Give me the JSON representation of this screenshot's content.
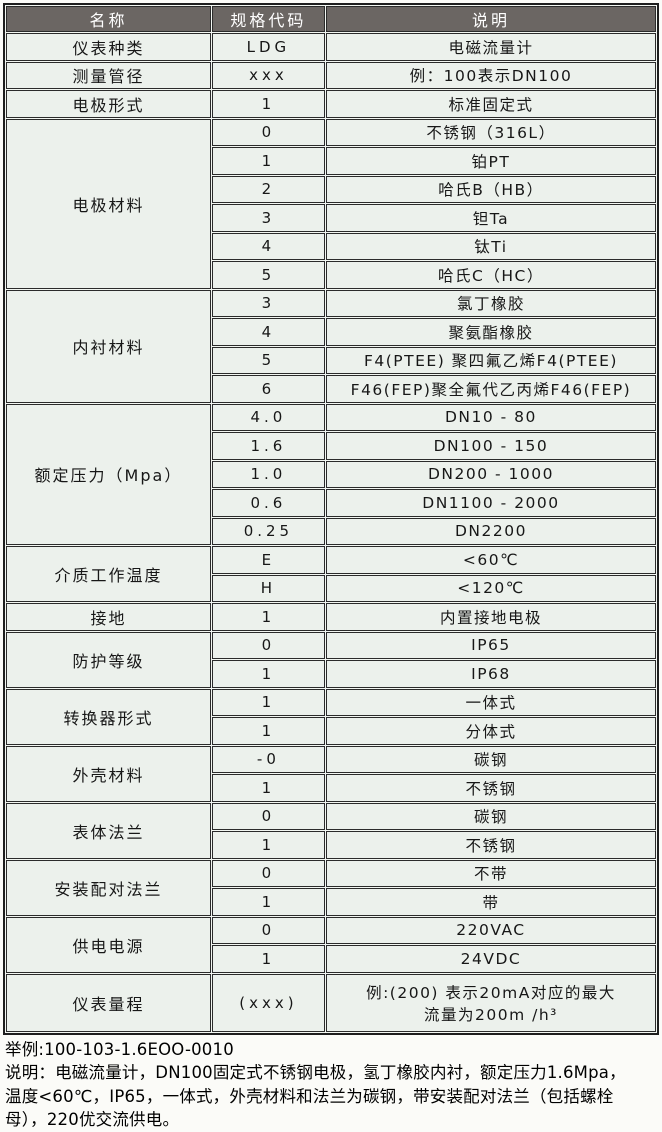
{
  "table": {
    "header": {
      "name": "名称",
      "code": "规格代码",
      "desc": "说明"
    },
    "rows": [
      {
        "name": "仪表种类",
        "rowspan": 1,
        "code": "LDG",
        "desc": "电磁流量计"
      },
      {
        "name": "测量管径",
        "rowspan": 1,
        "code": "xxx",
        "desc": "例：100表示DN100"
      },
      {
        "name": "电极形式",
        "rowspan": 1,
        "code": "1",
        "desc": "标准固定式"
      },
      {
        "name": "电极材料",
        "rowspan": 6,
        "code": "0",
        "desc": "不锈钢（316L）"
      },
      {
        "code": "1",
        "desc": "铂PT"
      },
      {
        "code": "2",
        "desc": "哈氏B（HB）"
      },
      {
        "code": "3",
        "desc": "钽Ta"
      },
      {
        "code": "4",
        "desc": "钛Ti"
      },
      {
        "code": "5",
        "desc": "哈氏C（HC）"
      },
      {
        "name": "内衬材料",
        "rowspan": 4,
        "code": "3",
        "desc": "氯丁橡胶"
      },
      {
        "code": "4",
        "desc": "聚氨酯橡胶"
      },
      {
        "code": "5",
        "desc": "F4(PTEE) 聚四氟乙烯F4(PTEE)"
      },
      {
        "code": "6",
        "desc": "F46(FEP)聚全氟代乙丙烯F46(FEP)"
      },
      {
        "name": "额定压力（Mpa）",
        "rowspan": 5,
        "code": "4.0",
        "desc": "DN10 - 80"
      },
      {
        "code": "1.6",
        "desc": "DN100 - 150"
      },
      {
        "code": "1.0",
        "desc": "DN200 - 1000"
      },
      {
        "code": "0.6",
        "desc": "DN1100 - 2000"
      },
      {
        "code": "0.25",
        "desc": "DN2200"
      },
      {
        "name": "介质工作温度",
        "rowspan": 2,
        "code": "E",
        "desc": "<60℃"
      },
      {
        "code": "H",
        "desc": "<120℃"
      },
      {
        "name": "接地",
        "rowspan": 1,
        "code": "1",
        "desc": "内置接地电极"
      },
      {
        "name": "防护等级",
        "rowspan": 2,
        "code": "0",
        "desc": "IP65"
      },
      {
        "code": "1",
        "desc": "IP68"
      },
      {
        "name": "转换器形式",
        "rowspan": 2,
        "code": "1",
        "desc": "一体式"
      },
      {
        "code": "1",
        "desc": "分体式"
      },
      {
        "name": "外壳材料",
        "rowspan": 2,
        "code": "-0",
        "desc": "碳钢"
      },
      {
        "code": "1",
        "desc": "不锈钢"
      },
      {
        "name": "表体法兰",
        "rowspan": 2,
        "code": "0",
        "desc": "碳钢"
      },
      {
        "code": "1",
        "desc": "不锈钢"
      },
      {
        "name": "安装配对法兰",
        "rowspan": 2,
        "code": "0",
        "desc": "不带"
      },
      {
        "code": "1",
        "desc": "带"
      },
      {
        "name": "供电电源",
        "rowspan": 2,
        "code": "0",
        "desc": "220VAC"
      },
      {
        "code": "1",
        "desc": "24VDC"
      },
      {
        "name": "仪表量程",
        "rowspan": 1,
        "tall": true,
        "code": "(xxx)",
        "desc": "例:(200) 表示20mA对应的最大",
        "desc2": "流量为200m /h³"
      }
    ]
  },
  "footer": {
    "example": "举例:100-103-1.6EOO-0010",
    "lines": [
      "说明：电磁流量计，DN100固定式不锈钢电极，氢丁橡胶内衬，额定压力1.6Mpa，",
      "温度<60℃，IP65，一体式，外壳材料和法兰为碳钢，带安装配对法兰（包括螺栓",
      "母），220优交流供电。"
    ]
  },
  "colors": {
    "header_bg": "#6b6663",
    "header_text": "#ffffff",
    "cell_bg": "#ecf1ec",
    "border": "#2b2b2b"
  }
}
